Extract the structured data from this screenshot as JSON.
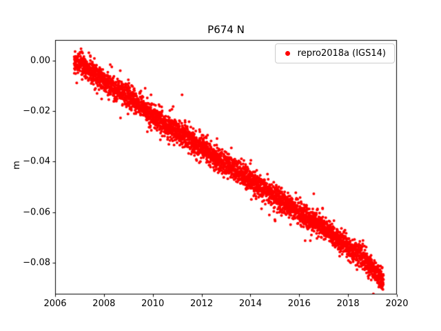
{
  "chart_data": {
    "type": "scatter",
    "title": "P674 N",
    "xlabel": "",
    "ylabel": "m",
    "xlim": [
      2006,
      2020
    ],
    "ylim": [
      -0.0926,
      0.0082
    ],
    "grid": false,
    "xticks": [
      2006,
      2008,
      2010,
      2012,
      2014,
      2016,
      2018,
      2020
    ],
    "xtick_labels": [
      "2006",
      "2008",
      "2010",
      "2012",
      "2014",
      "2016",
      "2018",
      "2020"
    ],
    "yticks": [
      0.0,
      -0.02,
      -0.04,
      -0.06,
      -0.08
    ],
    "ytick_labels": [
      "0.00",
      "−0.02",
      "−0.04",
      "−0.06",
      "−0.08"
    ],
    "legend": {
      "label": "repro2018a (IGS14)",
      "marker_color": "#ff0000",
      "location": "upper right"
    },
    "series": [
      {
        "name": "repro2018a (IGS14)",
        "color": "#ff0000",
        "marker": "dot",
        "marker_radius_px": 2,
        "points_per_year": 300,
        "noise_sd": 0.0022,
        "trend_anchors": [
          [
            2006.78,
            -0.0005
          ],
          [
            2007.0,
            -0.001
          ],
          [
            2007.5,
            -0.004
          ],
          [
            2008.0,
            -0.008
          ],
          [
            2008.5,
            -0.011
          ],
          [
            2009.0,
            -0.014
          ],
          [
            2009.5,
            -0.018
          ],
          [
            2010.0,
            -0.022
          ],
          [
            2010.5,
            -0.025
          ],
          [
            2011.0,
            -0.028
          ],
          [
            2011.5,
            -0.031
          ],
          [
            2012.0,
            -0.034
          ],
          [
            2012.5,
            -0.038
          ],
          [
            2013.0,
            -0.041
          ],
          [
            2013.5,
            -0.044
          ],
          [
            2014.0,
            -0.047
          ],
          [
            2014.5,
            -0.05
          ],
          [
            2015.0,
            -0.054
          ],
          [
            2015.5,
            -0.057
          ],
          [
            2016.0,
            -0.06
          ],
          [
            2016.5,
            -0.063
          ],
          [
            2017.0,
            -0.066
          ],
          [
            2017.5,
            -0.07
          ],
          [
            2018.0,
            -0.074
          ],
          [
            2018.5,
            -0.077
          ],
          [
            2019.0,
            -0.082
          ],
          [
            2019.45,
            -0.087
          ]
        ],
        "outliers": [
          [
            2011.2,
            -0.0135
          ]
        ]
      }
    ]
  }
}
